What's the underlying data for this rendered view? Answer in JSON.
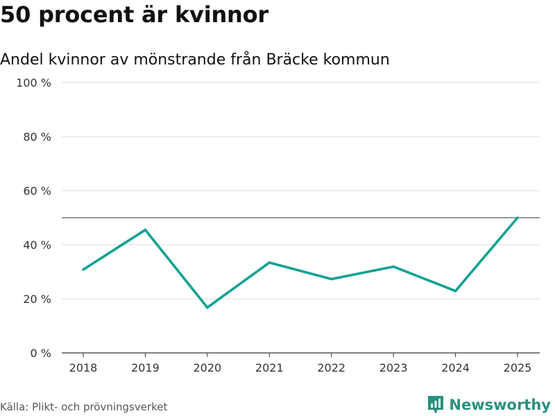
{
  "chart_data": {
    "type": "line",
    "title": "50 procent är kvinnor",
    "subtitle": "Andel kvinnor av mönstrande från Bräcke kommun",
    "categories": [
      "2018",
      "2019",
      "2020",
      "2021",
      "2022",
      "2023",
      "2024",
      "2025"
    ],
    "series": [
      {
        "name": "Andel kvinnor",
        "values": [
          30.8,
          45.5,
          16.8,
          33.4,
          27.3,
          31.9,
          22.9,
          50.0
        ]
      }
    ],
    "reference_line": 50,
    "ylim": [
      0,
      100
    ],
    "yticks": [
      0,
      20,
      40,
      60,
      80,
      100
    ],
    "ytick_labels": [
      "0 %",
      "20 %",
      "40 %",
      "60 %",
      "80 %",
      "100 %"
    ],
    "xlabel": "",
    "ylabel": "",
    "line_color": "#12a193",
    "grid": true
  },
  "footer": {
    "source": "Källa: Plikt- och prövningsverket",
    "brand": "Newsworthy",
    "brand_color": "#2a8f80"
  }
}
